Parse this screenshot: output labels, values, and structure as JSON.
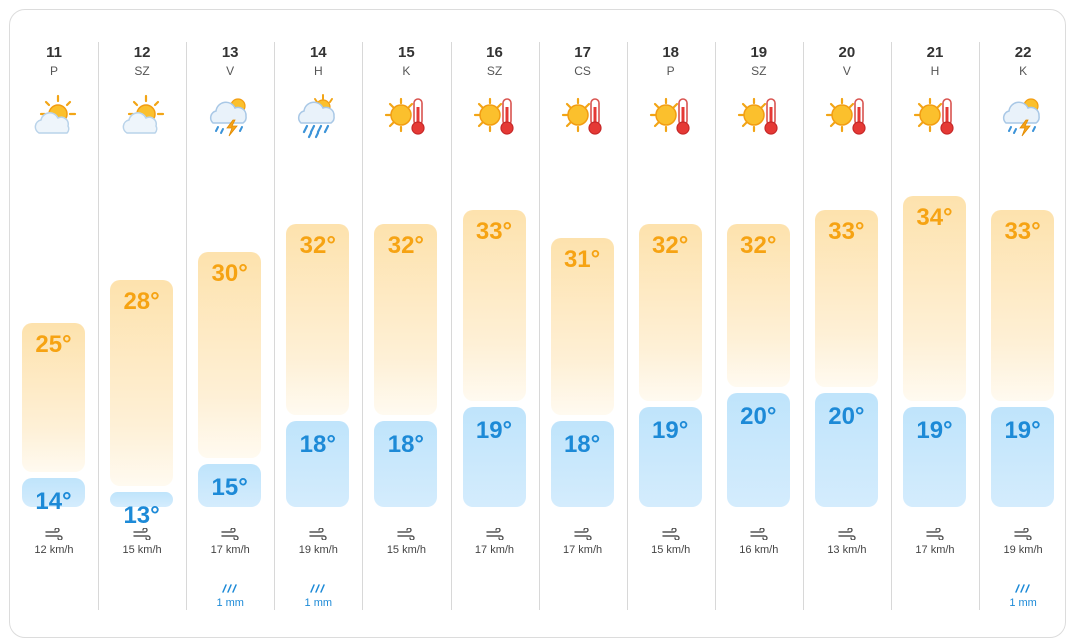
{
  "days": [
    {
      "date": "11",
      "weekday": "P",
      "icon": "sun-cloud-icon",
      "high": "25°",
      "low": "14°",
      "high_c": 25,
      "low_c": 14,
      "wind": "12 km/h",
      "rain": ""
    },
    {
      "date": "12",
      "weekday": "SZ",
      "icon": "sun-cloud-icon",
      "high": "28°",
      "low": "13°",
      "high_c": 28,
      "low_c": 13,
      "wind": "15 km/h",
      "rain": ""
    },
    {
      "date": "13",
      "weekday": "V",
      "icon": "thunderstorm-icon",
      "high": "30°",
      "low": "15°",
      "high_c": 30,
      "low_c": 15,
      "wind": "17 km/h",
      "rain": "1 mm"
    },
    {
      "date": "14",
      "weekday": "H",
      "icon": "rain-sun-icon",
      "high": "32°",
      "low": "18°",
      "high_c": 32,
      "low_c": 18,
      "wind": "19 km/h",
      "rain": "1 mm"
    },
    {
      "date": "15",
      "weekday": "K",
      "icon": "hot-sun-icon",
      "high": "32°",
      "low": "18°",
      "high_c": 32,
      "low_c": 18,
      "wind": "15 km/h",
      "rain": ""
    },
    {
      "date": "16",
      "weekday": "SZ",
      "icon": "hot-sun-icon",
      "high": "33°",
      "low": "19°",
      "high_c": 33,
      "low_c": 19,
      "wind": "17 km/h",
      "rain": ""
    },
    {
      "date": "17",
      "weekday": "CS",
      "icon": "hot-sun-icon",
      "high": "31°",
      "low": "18°",
      "high_c": 31,
      "low_c": 18,
      "wind": "17 km/h",
      "rain": ""
    },
    {
      "date": "18",
      "weekday": "P",
      "icon": "hot-sun-icon",
      "high": "32°",
      "low": "19°",
      "high_c": 32,
      "low_c": 19,
      "wind": "15 km/h",
      "rain": ""
    },
    {
      "date": "19",
      "weekday": "SZ",
      "icon": "hot-sun-icon",
      "high": "32°",
      "low": "20°",
      "high_c": 32,
      "low_c": 20,
      "wind": "16 km/h",
      "rain": ""
    },
    {
      "date": "20",
      "weekday": "V",
      "icon": "hot-sun-icon",
      "high": "33°",
      "low": "20°",
      "high_c": 33,
      "low_c": 20,
      "wind": "13 km/h",
      "rain": ""
    },
    {
      "date": "21",
      "weekday": "H",
      "icon": "hot-sun-icon",
      "high": "34°",
      "low": "19°",
      "high_c": 34,
      "low_c": 19,
      "wind": "17 km/h",
      "rain": ""
    },
    {
      "date": "22",
      "weekday": "K",
      "icon": "thunderstorm-icon",
      "high": "33°",
      "low": "19°",
      "high_c": 33,
      "low_c": 19,
      "wind": "19 km/h",
      "rain": "1 mm"
    }
  ],
  "colors": {
    "high_text": "#f6a313",
    "low_text": "#1d8ad7",
    "high_bar": "#fde2ad",
    "low_bar": "#c7e7fb"
  }
}
